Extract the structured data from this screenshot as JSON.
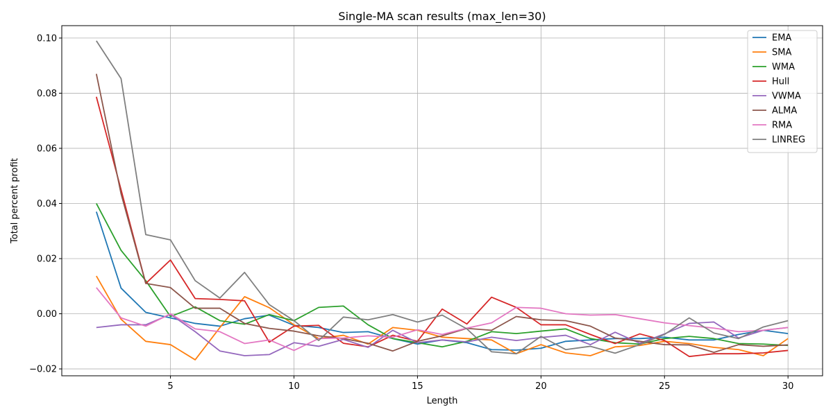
{
  "chart_data": {
    "type": "line",
    "title": "Single-MA scan results (max_len=30)",
    "xlabel": "Length",
    "ylabel": "Total percent profit",
    "xlim": [
      0.6,
      31.4
    ],
    "ylim": [
      -0.0225,
      0.1045
    ],
    "xticks": [
      5,
      10,
      15,
      20,
      25,
      30
    ],
    "xtick_labels": [
      "5",
      "10",
      "15",
      "20",
      "25",
      "30"
    ],
    "yticks": [
      -0.02,
      0.0,
      0.02,
      0.04,
      0.06,
      0.08,
      0.1
    ],
    "ytick_labels": [
      "−0.02",
      "0.00",
      "0.02",
      "0.04",
      "0.06",
      "0.08",
      "0.10"
    ],
    "grid": true,
    "legend_position": "top-right",
    "x": [
      2,
      3,
      4,
      5,
      6,
      7,
      8,
      9,
      10,
      11,
      12,
      13,
      14,
      15,
      16,
      17,
      18,
      19,
      20,
      21,
      22,
      23,
      24,
      25,
      26,
      27,
      28,
      29,
      30
    ],
    "series": [
      {
        "name": "EMA",
        "color": "#1f77b4",
        "values": [
          0.037,
          0.0093,
          0.0005,
          -0.0015,
          -0.0035,
          -0.0045,
          -0.0018,
          -0.0005,
          -0.0042,
          -0.005,
          -0.0068,
          -0.0065,
          -0.009,
          -0.011,
          -0.0095,
          -0.0105,
          -0.013,
          -0.0132,
          -0.0125,
          -0.01,
          -0.0095,
          -0.009,
          -0.009,
          -0.0085,
          -0.0095,
          -0.0095,
          -0.0075,
          -0.006,
          -0.0072
        ]
      },
      {
        "name": "SMA",
        "color": "#ff7f0e",
        "values": [
          0.0137,
          -0.002,
          -0.01,
          -0.0112,
          -0.0167,
          -0.005,
          0.0062,
          0.0022,
          -0.004,
          -0.009,
          -0.0078,
          -0.011,
          -0.005,
          -0.006,
          -0.0085,
          -0.009,
          -0.0095,
          -0.0145,
          -0.0112,
          -0.0142,
          -0.0152,
          -0.012,
          -0.0115,
          -0.01,
          -0.0108,
          -0.0122,
          -0.013,
          -0.0152,
          -0.009
        ]
      },
      {
        "name": "WMA",
        "color": "#2ca02c",
        "values": [
          0.04,
          0.023,
          0.012,
          -0.001,
          0.0025,
          -0.0025,
          -0.0038,
          -0.0003,
          -0.0025,
          0.0023,
          0.0028,
          -0.004,
          -0.009,
          -0.0105,
          -0.012,
          -0.01,
          -0.0065,
          -0.0072,
          -0.0063,
          -0.0055,
          -0.009,
          -0.0105,
          -0.011,
          -0.009,
          -0.0082,
          -0.009,
          -0.0108,
          -0.011,
          -0.0115
        ]
      },
      {
        "name": "Hull",
        "color": "#d62728",
        "values": [
          0.0787,
          0.045,
          0.011,
          0.0195,
          0.0055,
          0.0052,
          0.0047,
          -0.0103,
          -0.0045,
          -0.0042,
          -0.0107,
          -0.012,
          -0.0078,
          -0.01,
          0.0017,
          -0.0037,
          0.006,
          0.0023,
          -0.004,
          -0.004,
          -0.0075,
          -0.0108,
          -0.0073,
          -0.0097,
          -0.0155,
          -0.0145,
          -0.0145,
          -0.0142,
          -0.0133
        ]
      },
      {
        "name": "VWMA",
        "color": "#9467bd",
        "values": [
          -0.005,
          -0.004,
          -0.004,
          -0.0002,
          -0.0065,
          -0.0135,
          -0.0152,
          -0.0148,
          -0.0105,
          -0.0118,
          -0.0093,
          -0.0122,
          -0.006,
          -0.0105,
          -0.0095,
          -0.0102,
          -0.0085,
          -0.0097,
          -0.0086,
          -0.0078,
          -0.0112,
          -0.0067,
          -0.0107,
          -0.0073,
          -0.0035,
          -0.003,
          -0.0088,
          -0.006,
          -0.005
        ]
      },
      {
        "name": "ALMA",
        "color": "#8c564b",
        "values": [
          0.087,
          0.0435,
          0.011,
          0.0095,
          0.002,
          0.002,
          -0.0035,
          -0.0053,
          -0.0063,
          -0.008,
          -0.009,
          -0.0107,
          -0.0135,
          -0.01,
          -0.008,
          -0.0053,
          -0.006,
          -0.001,
          -0.0022,
          -0.0025,
          -0.0045,
          -0.0088,
          -0.01,
          -0.0112,
          -0.0113,
          -0.014,
          -0.0112,
          -0.0118,
          -0.0113
        ]
      },
      {
        "name": "RMA",
        "color": "#e377c2",
        "values": [
          0.0095,
          -0.0015,
          -0.0045,
          0.0,
          -0.0055,
          -0.0065,
          -0.0108,
          -0.0095,
          -0.0133,
          -0.009,
          -0.0088,
          -0.008,
          -0.0085,
          -0.0058,
          -0.0075,
          -0.0052,
          -0.0033,
          0.0023,
          0.002,
          0.0,
          -0.0005,
          -0.0003,
          -0.0018,
          -0.0033,
          -0.0043,
          -0.0052,
          -0.0065,
          -0.006,
          -0.005
        ]
      },
      {
        "name": "LINREG",
        "color": "#7f7f7f",
        "values": [
          0.099,
          0.0853,
          0.0287,
          0.0268,
          0.012,
          0.0057,
          0.015,
          0.0033,
          -0.0025,
          -0.0097,
          -0.0012,
          -0.0022,
          -0.0003,
          -0.003,
          -0.0005,
          -0.0055,
          -0.0138,
          -0.0145,
          -0.0082,
          -0.013,
          -0.0118,
          -0.0143,
          -0.0112,
          -0.0075,
          -0.0015,
          -0.007,
          -0.009,
          -0.0048,
          -0.0025
        ]
      }
    ]
  }
}
